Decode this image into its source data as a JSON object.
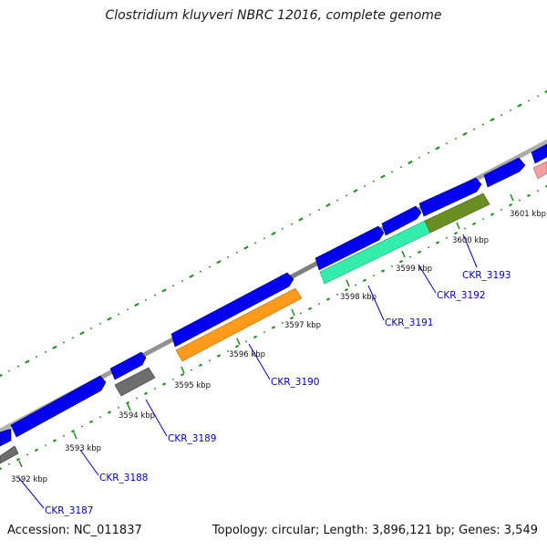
{
  "title": "Clostridium kluyveri NBRC 12016, complete genome",
  "accession": "Accession: NC_011837",
  "topology": "Topology: circular; Length: 3,896,121 bp; Genes: 3,549",
  "kbp_labels": [
    "3592 kbp",
    "3593 kbp",
    "3594 kbp",
    "3595 kbp",
    "3596 kbp",
    "3597 kbp",
    "3598 kbp",
    "3599 kbp",
    "3600 kbp",
    "3601 kbp"
  ],
  "gene_labels": [
    "CKR_3187",
    "CKR_3188",
    "CKR_3189",
    "CKR_3190",
    "CKR_3191",
    "CKR_3192",
    "CKR_3193"
  ],
  "colors": {
    "backbone": "#8c8c8c",
    "forward_gene": "#0000ee",
    "tick": "#1a8a1a",
    "label": "#0000cc",
    "cds_grey": "#6e6e6e",
    "cds_orange": "#ff9a1a",
    "cds_aquamarine": "#33eeaa",
    "cds_olive": "#6b8e23",
    "cds_pink": "#f4a0a0"
  }
}
